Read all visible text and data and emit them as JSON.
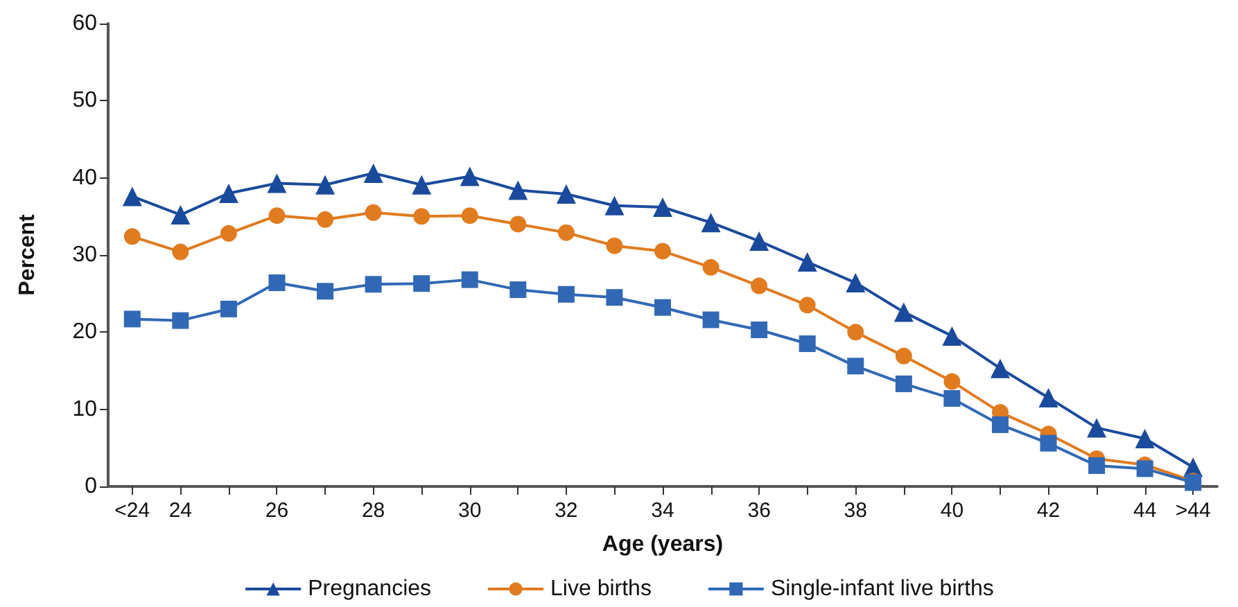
{
  "chart_data": {
    "type": "line",
    "xlabel": "Age (years)",
    "ylabel": "Percent",
    "categories": [
      "<24",
      "24",
      null,
      "26",
      null,
      "28",
      null,
      "30",
      null,
      "32",
      null,
      "34",
      null,
      "36",
      null,
      "38",
      null,
      "40",
      null,
      "42",
      null,
      "44",
      ">44"
    ],
    "series": [
      {
        "name": "Pregnancies",
        "color": "#1a4a9c",
        "marker": "triangle",
        "values": [
          37.6,
          35.2,
          38.0,
          39.3,
          39.1,
          40.6,
          39.1,
          40.2,
          38.4,
          37.9,
          36.4,
          36.2,
          34.2,
          31.8,
          29.1,
          26.4,
          22.6,
          19.5,
          15.3,
          11.5,
          7.6,
          6.2,
          2.5
        ]
      },
      {
        "name": "Live births",
        "color": "#e07b20",
        "marker": "circle",
        "values": [
          32.4,
          30.4,
          32.8,
          35.1,
          34.6,
          35.5,
          35.0,
          35.1,
          34.0,
          32.9,
          31.2,
          30.5,
          28.4,
          26.0,
          23.5,
          20.0,
          16.9,
          13.6,
          9.6,
          6.8,
          3.6,
          2.8,
          0.7
        ]
      },
      {
        "name": "Single-infant live births",
        "color": "#3068b5",
        "marker": "square",
        "values": [
          21.7,
          21.5,
          23.0,
          26.4,
          25.3,
          26.2,
          26.3,
          26.8,
          25.5,
          24.9,
          24.5,
          23.2,
          21.6,
          20.3,
          18.5,
          15.6,
          13.3,
          11.4,
          8.0,
          5.6,
          2.7,
          2.3,
          0.5
        ]
      }
    ],
    "ylim": [
      0,
      60
    ],
    "yticks": [
      0,
      10,
      20,
      30,
      40,
      50,
      60
    ],
    "grid": false,
    "legend": "bottom",
    "line_style": "solid"
  }
}
